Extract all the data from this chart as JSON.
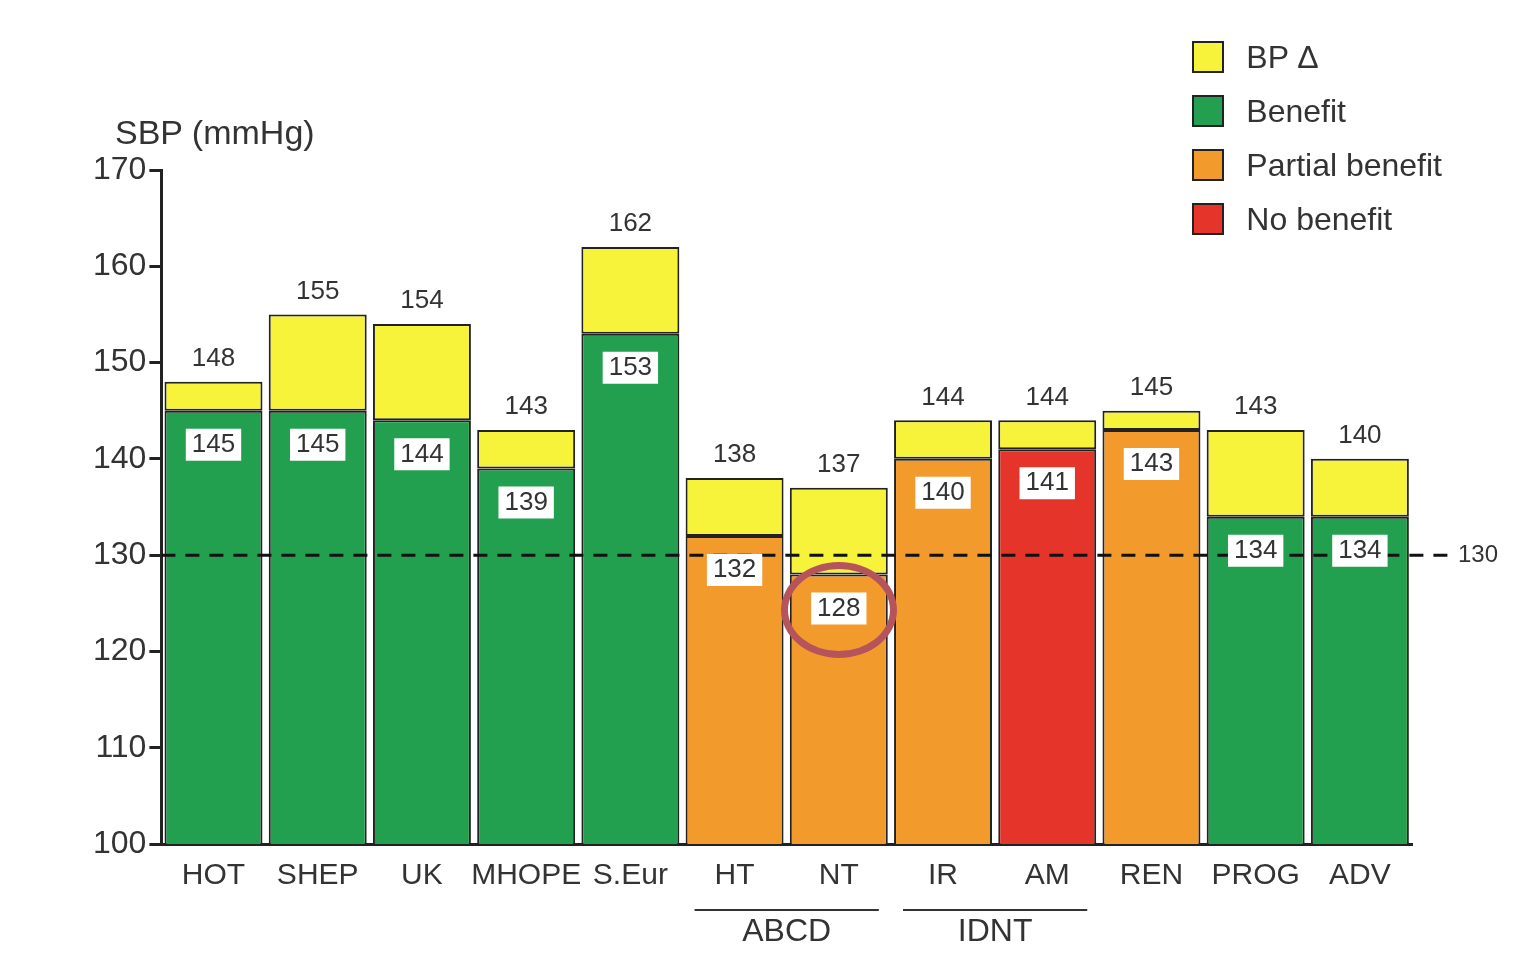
{
  "chart_data": {
    "type": "bar",
    "ylabel": "SBP (mmHg)",
    "categories": [
      "HOT",
      "SHEP",
      "UK",
      "MHOPE",
      "S.Eur",
      "HT",
      "NT",
      "IR",
      "AM",
      "REN",
      "PROG",
      "ADV"
    ],
    "series": [
      {
        "name": "BP Δ",
        "color": "#f7f23a",
        "base": [
          145,
          145,
          144,
          139,
          153,
          132,
          128,
          140,
          141,
          143,
          134,
          134
        ],
        "values": [
          3,
          10,
          10,
          4,
          9,
          6,
          9,
          4,
          3,
          2,
          9,
          6
        ]
      },
      {
        "name": "Benefit",
        "color": "#22a04f",
        "values": [
          145,
          145,
          144,
          139,
          153,
          null,
          null,
          null,
          null,
          null,
          134,
          134
        ],
        "value_labels": [
          "145",
          "145",
          "144",
          "139",
          "153",
          null,
          null,
          null,
          null,
          null,
          "134",
          "134"
        ]
      },
      {
        "name": "Partial benefit",
        "color": "#f39a2c",
        "values": [
          null,
          null,
          null,
          null,
          null,
          132,
          128,
          140,
          null,
          143,
          null,
          null
        ],
        "value_labels": [
          null,
          null,
          null,
          null,
          null,
          "132",
          "128",
          "140",
          null,
          "143",
          null,
          null
        ]
      },
      {
        "name": "No benefit",
        "color": "#e5352b",
        "values": [
          null,
          null,
          null,
          null,
          null,
          null,
          null,
          null,
          141,
          null,
          null,
          null
        ],
        "value_labels": [
          null,
          null,
          null,
          null,
          null,
          null,
          null,
          null,
          "141",
          null,
          null,
          null
        ]
      }
    ],
    "totals": [
      "148",
      "155",
      "154",
      "143",
      "162",
      "138",
      "137",
      "144",
      "144",
      "145",
      "143",
      "140"
    ],
    "ylim": [
      100,
      170
    ],
    "yticks": [
      100,
      110,
      120,
      130,
      140,
      150,
      160,
      170
    ],
    "ref_lines": [
      {
        "axis": "y",
        "value": 130,
        "label": "130",
        "line_style": "dashed"
      }
    ],
    "annotations": [
      "ABCD",
      "IDNT"
    ],
    "legend": "top right",
    "grid": false
  }
}
